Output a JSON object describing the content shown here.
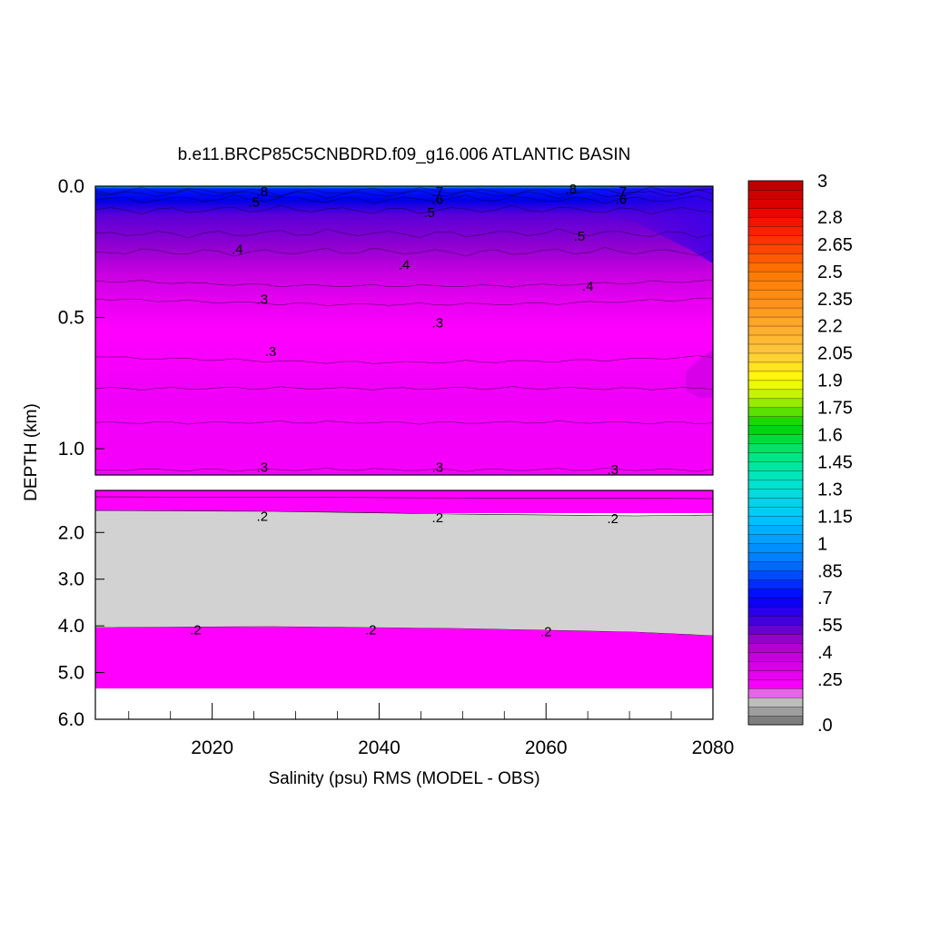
{
  "chart_data": {
    "type": "heatmap",
    "title": "b.e11.BRCP85C5CNBDRD.f09_g16.006 ATLANTIC BASIN",
    "xlabel": "Salinity (psu) RMS (MODEL - OBS)",
    "ylabel": "DEPTH (km)",
    "xlim": [
      2006,
      2080
    ],
    "x_ticks": [
      "2020",
      "2040",
      "2060",
      "2080"
    ],
    "upper_panel": {
      "ylim": [
        0.0,
        1.1
      ],
      "y_ticks": [
        "0.0",
        "0.5",
        "1.0"
      ],
      "contours": [
        {
          "depth": 0.02,
          "value": 0.8
        },
        {
          "depth": 0.03,
          "value": 0.7
        },
        {
          "depth": 0.05,
          "value": 0.6
        },
        {
          "depth": 0.09,
          "value": 0.5
        },
        {
          "depth": 0.18,
          "value": 0.5
        },
        {
          "depth": 0.25,
          "value": 0.4
        },
        {
          "depth": 0.36,
          "value": 0.4
        },
        {
          "depth": 0.43,
          "value": 0.3
        },
        {
          "depth": 0.65,
          "value": 0.3
        },
        {
          "depth": 0.77,
          "value": 0.3
        },
        {
          "depth": 0.9,
          "value": 0.3
        },
        {
          "depth": 1.08,
          "value": 0.3
        }
      ],
      "contour_labels": [
        {
          "x": 2026,
          "depth": 0.02,
          "text": ".8"
        },
        {
          "x": 2025,
          "depth": 0.06,
          "text": ".5"
        },
        {
          "x": 2047,
          "depth": 0.02,
          "text": ".7"
        },
        {
          "x": 2047,
          "depth": 0.05,
          "text": ".6"
        },
        {
          "x": 2046,
          "depth": 0.1,
          "text": ".5"
        },
        {
          "x": 2063,
          "depth": 0.01,
          "text": ".8"
        },
        {
          "x": 2069,
          "depth": 0.02,
          "text": ".7"
        },
        {
          "x": 2069,
          "depth": 0.05,
          "text": ".6"
        },
        {
          "x": 2064,
          "depth": 0.19,
          "text": ".5"
        },
        {
          "x": 2023,
          "depth": 0.24,
          "text": ".4"
        },
        {
          "x": 2043,
          "depth": 0.3,
          "text": ".4"
        },
        {
          "x": 2065,
          "depth": 0.38,
          "text": ".4"
        },
        {
          "x": 2026,
          "depth": 0.43,
          "text": ".3"
        },
        {
          "x": 2047,
          "depth": 0.52,
          "text": ".3"
        },
        {
          "x": 2027,
          "depth": 0.63,
          "text": ".3"
        },
        {
          "x": 2026,
          "depth": 1.07,
          "text": ".3"
        },
        {
          "x": 2047,
          "depth": 1.07,
          "text": ".3"
        },
        {
          "x": 2068,
          "depth": 1.08,
          "text": ".3"
        }
      ]
    },
    "lower_panel": {
      "ylim": [
        1.1,
        6.0
      ],
      "y_ticks": [
        "2.0",
        "3.0",
        "4.0",
        "5.0",
        "6.0"
      ],
      "regions": [
        {
          "from_depth": 1.1,
          "to_depth": 1.6,
          "value": 0.25
        },
        {
          "from_depth": 1.6,
          "to_depth": 4.05,
          "value": 0.15
        },
        {
          "from_depth": 4.05,
          "to_depth": 5.35,
          "value": 0.25
        }
      ],
      "contour_labels": [
        {
          "x": 2026,
          "depth": 1.65,
          "text": ".2"
        },
        {
          "x": 2047,
          "depth": 1.68,
          "text": ".2"
        },
        {
          "x": 2068,
          "depth": 1.7,
          "text": ".2"
        },
        {
          "x": 2018,
          "depth": 4.08,
          "text": ".2"
        },
        {
          "x": 2039,
          "depth": 4.08,
          "text": ".2"
        },
        {
          "x": 2060,
          "depth": 4.12,
          "text": ".2"
        }
      ]
    },
    "colorbar": {
      "min": 0.0,
      "max": 3.0,
      "step": 0.05,
      "labels": [
        "3",
        "2.8",
        "2.65",
        "2.5",
        "2.35",
        "2.2",
        "2.05",
        "1.9",
        "1.75",
        "1.6",
        "1.45",
        "1.3",
        "1.15",
        "1",
        ".85",
        ".7",
        ".55",
        ".4",
        ".25",
        ".0"
      ]
    },
    "colors": {
      "magenta": "#ff00ff",
      "gray_fill": "#d2d2d2",
      "blue": "#0000ff",
      "deep_blue": "#1010c8",
      "red": "#b40000"
    },
    "grid": false
  }
}
